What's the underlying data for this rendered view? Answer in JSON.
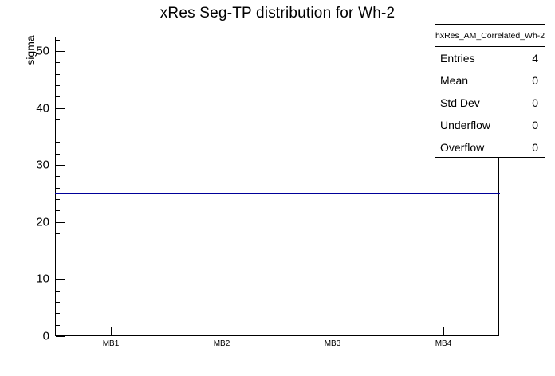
{
  "title": "xRes Seg-TP distribution for Wh-2",
  "y_axis_title": "sigma",
  "stats_box": {
    "header": "hxRes_AM_Correlated_Wh-2",
    "rows": [
      {
        "label": "Entries",
        "value": "4"
      },
      {
        "label": "Mean",
        "value": "0"
      },
      {
        "label": "Std Dev",
        "value": "0"
      },
      {
        "label": "Underflow",
        "value": "0"
      },
      {
        "label": "Overflow",
        "value": "0"
      }
    ]
  },
  "chart_data": {
    "type": "line",
    "title": "xRes Seg-TP distribution for Wh-2",
    "categories": [
      "MB1",
      "MB2",
      "MB3",
      "MB4"
    ],
    "values": [
      25,
      25,
      25,
      25
    ],
    "xlabel": "",
    "ylabel": "sigma",
    "ylim": [
      0,
      52.5
    ],
    "y_major_ticks": [
      0,
      10,
      20,
      30,
      40,
      50
    ],
    "y_minor_step": 2,
    "line_color": "#000099",
    "frame_color": "#000000",
    "background_color": "#ffffff",
    "grid": false,
    "legend_position": "none"
  }
}
